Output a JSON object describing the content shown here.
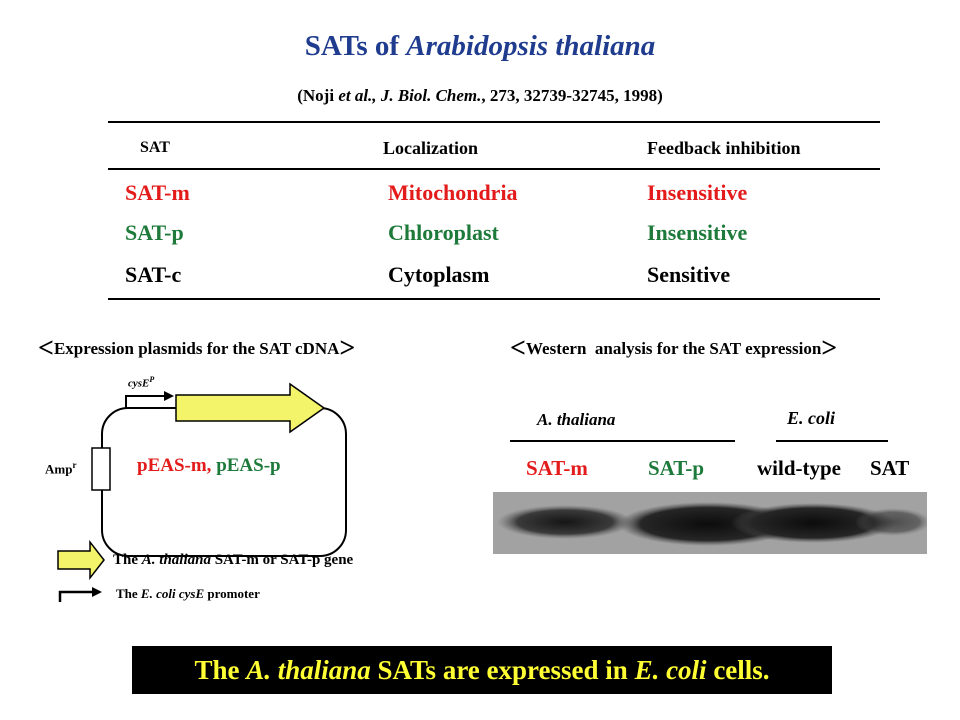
{
  "title": {
    "prefix": "SATs of ",
    "species": "Arabidopsis thaliana"
  },
  "citation": {
    "open": "(Noji ",
    "etal": "et al.,",
    "journal": " J. Biol. Chem.",
    "rest": ", 273, 32739-32745, 1998)"
  },
  "table": {
    "headers": {
      "sat": "SAT",
      "localization": "Localization",
      "feedback": "Feedback inhibition"
    },
    "rows": [
      {
        "name": "SAT-m",
        "localization": "Mitochondria",
        "feedback": "Insensitive"
      },
      {
        "name": "SAT-p",
        "localization": "Chloroplast",
        "feedback": "Insensitive"
      },
      {
        "name": "SAT-c",
        "localization": "Cytoplasm",
        "feedback": "Sensitive"
      }
    ]
  },
  "sections": {
    "left": "Expression plasmids for the SAT cDNA",
    "right": "Western  analysis for the SAT expression"
  },
  "plasmid": {
    "promoter_label": "cysE",
    "promoter_sup": "P",
    "amp_label": "Amp",
    "amp_sup": "r",
    "name_m": "pEAS-m,",
    "name_p": "pEAS-p"
  },
  "legend": {
    "gene": {
      "pre": "The ",
      "species": "A. thaliana",
      "post": " SAT-m or SAT-p gene"
    },
    "promoter": {
      "pre": "The ",
      "species": "E. coli",
      "gene": " cysE",
      "post": " promoter"
    }
  },
  "western": {
    "group1": "A. thaliana",
    "group2": "E. coli",
    "lanes": [
      {
        "label": "SAT-m",
        "color": "#e31b1b"
      },
      {
        "label": "SAT-p",
        "color": "#1e7a3a"
      },
      {
        "label": "wild-type",
        "color": "#000000"
      },
      {
        "label": "SAT",
        "color": "#000000"
      }
    ]
  },
  "conclusion": {
    "pre": "The ",
    "species": "A. thaliana",
    "mid": " SATs are expressed in ",
    "org": "E. coli",
    "post": " cells."
  },
  "colors": {
    "title": "#1f3c8f",
    "red": "#e31b1b",
    "green": "#1e7a3a",
    "arrow_fill": "#f4f46a",
    "highlight": "#ffff33"
  }
}
